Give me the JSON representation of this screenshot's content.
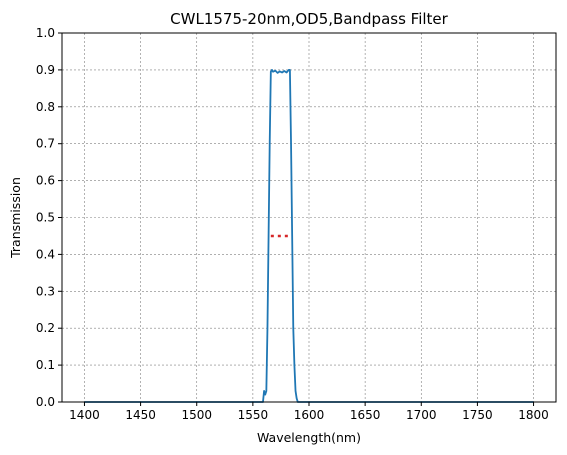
{
  "chart_data": {
    "type": "line",
    "title": "CWL1575-20nm,OD5,Bandpass Filter",
    "xlabel": "Wavelength(nm)",
    "ylabel": "Transmission",
    "xlim": [
      1380,
      1820
    ],
    "ylim": [
      0,
      1.0
    ],
    "xticks": [
      1400,
      1450,
      1500,
      1550,
      1600,
      1650,
      1700,
      1750,
      1800
    ],
    "yticks": [
      "0.0",
      "0.1",
      "0.2",
      "0.3",
      "0.4",
      "0.5",
      "0.6",
      "0.7",
      "0.8",
      "0.9",
      "1.0"
    ],
    "grid": true,
    "colors": {
      "series": "#1f77b4",
      "marker": "#d62728",
      "grid": "#808080"
    },
    "series": [
      {
        "x": [
          1400,
          1500,
          1555,
          1559,
          1560,
          1561,
          1562,
          1563,
          1564,
          1565,
          1566,
          1567,
          1568,
          1570,
          1572,
          1574,
          1576,
          1578,
          1580,
          1582,
          1583,
          1584,
          1585,
          1586,
          1587,
          1588,
          1589,
          1590,
          1591,
          1600,
          1700,
          1800
        ],
        "y": [
          0,
          0,
          0,
          0.0,
          0.03,
          0.02,
          0.03,
          0.2,
          0.45,
          0.7,
          0.895,
          0.9,
          0.895,
          0.898,
          0.892,
          0.896,
          0.893,
          0.897,
          0.893,
          0.9,
          0.9,
          0.7,
          0.45,
          0.2,
          0.1,
          0.03,
          0.01,
          0.0,
          0,
          0,
          0,
          0
        ]
      }
    ],
    "annotations": [
      {
        "type": "dotted-hline",
        "x": [
          1566,
          1584
        ],
        "y": 0.45
      }
    ]
  }
}
